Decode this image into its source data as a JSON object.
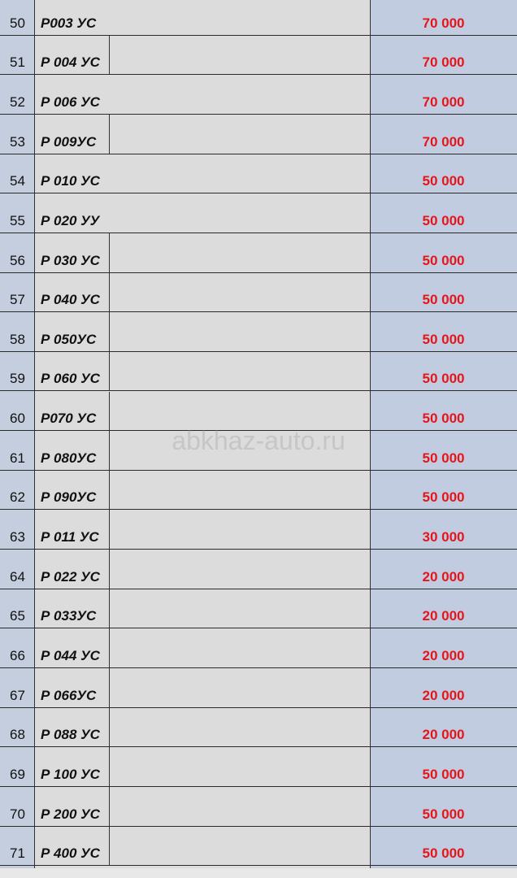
{
  "rows": [
    [
      "50",
      "Р003 УС",
      "70 000"
    ],
    [
      "51",
      "Р 004 УС",
      "70 000"
    ],
    [
      "52",
      "Р 006 УС",
      "70 000"
    ],
    [
      "53",
      "Р 009УС",
      "70 000"
    ],
    [
      "54",
      "Р 010 УС",
      "50 000"
    ],
    [
      "55",
      "Р 020 УУ",
      "50 000"
    ],
    [
      "56",
      "Р 030 УС",
      "50 000"
    ],
    [
      "57",
      "Р 040 УС",
      "50 000"
    ],
    [
      "58",
      "Р 050УС",
      "50 000"
    ],
    [
      "59",
      "Р 060 УС",
      "50 000"
    ],
    [
      "60",
      "Р070 УС",
      "50 000"
    ],
    [
      "61",
      "Р 080УС",
      "50 000"
    ],
    [
      "62",
      "Р 090УС",
      "50 000"
    ],
    [
      "63",
      "Р 011 УС",
      "30 000"
    ],
    [
      "64",
      "Р 022 УС",
      "20 000"
    ],
    [
      "65",
      "Р 033УС",
      "20 000"
    ],
    [
      "66",
      "Р 044 УС",
      "20 000"
    ],
    [
      "67",
      "Р 066УС",
      "20 000"
    ],
    [
      "68",
      "Р 088 УС",
      "20 000"
    ],
    [
      "69",
      "Р 100 УС",
      "50 000"
    ],
    [
      "70",
      "Р 200 УС",
      "50 000"
    ],
    [
      "71",
      "Р 400 УС",
      "50 000"
    ]
  ],
  "watermark": "abkhaz-auto.ru"
}
